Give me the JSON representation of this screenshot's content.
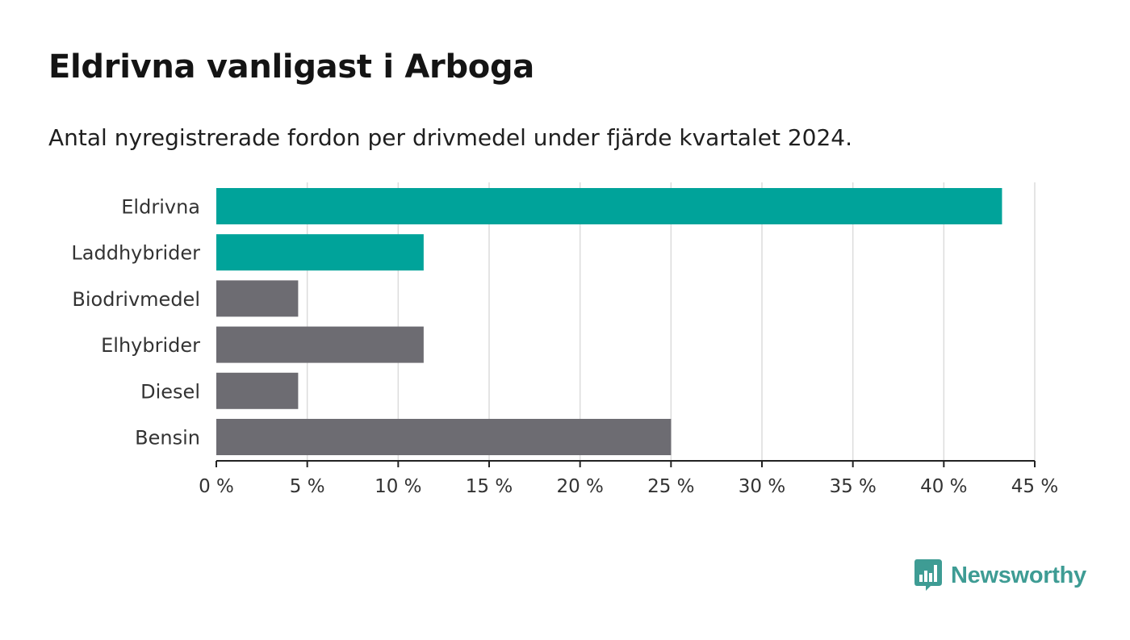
{
  "title": "Eldrivna vanligast i Arboga",
  "subtitle": "Antal nyregistrerade fordon per drivmedel under fjärde kvartalet 2024.",
  "brand": {
    "name": "Newsworthy",
    "color": "#3e9c94",
    "icon": "newsworthy-logo-icon"
  },
  "chart_data": {
    "type": "bar",
    "orientation": "horizontal",
    "categories": [
      "Eldrivna",
      "Laddhybrider",
      "Biodrivmedel",
      "Elhybrider",
      "Diesel",
      "Bensin"
    ],
    "values": [
      43.2,
      11.4,
      4.5,
      11.4,
      4.5,
      25.0
    ],
    "colors": [
      "#00a39a",
      "#00a39a",
      "#6d6c72",
      "#6d6c72",
      "#6d6c72",
      "#6d6c72"
    ],
    "xlim": [
      0,
      45
    ],
    "xticks": [
      0,
      5,
      10,
      15,
      20,
      25,
      30,
      35,
      40,
      45
    ],
    "tick_labels": [
      "0 %",
      "5 %",
      "10 %",
      "15 %",
      "20 %",
      "25 %",
      "30 %",
      "35 %",
      "40 %",
      "45 %"
    ],
    "grid": true,
    "xlabel": "",
    "ylabel": ""
  }
}
